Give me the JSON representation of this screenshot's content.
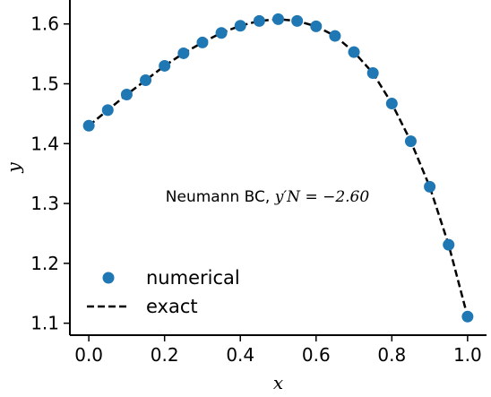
{
  "chart_data": {
    "type": "scatter",
    "xlabel": "x",
    "ylabel": "y",
    "xlim": [
      -0.05,
      1.05
    ],
    "ylim": [
      1.08,
      1.64
    ],
    "x_ticks": [
      0.0,
      0.2,
      0.4,
      0.6,
      0.8,
      1.0
    ],
    "x_tick_labels": [
      "0.0",
      "0.2",
      "0.4",
      "0.6",
      "0.8",
      "1.0"
    ],
    "y_ticks": [
      1.1,
      1.2,
      1.3,
      1.4,
      1.5,
      1.6
    ],
    "y_tick_labels": [
      "1.1",
      "1.2",
      "1.3",
      "1.4",
      "1.5",
      "1.6"
    ],
    "grid": false,
    "legend_position": "lower-left",
    "annotation": {
      "text": "Neumann BC, ",
      "math_text": "y′N = −2.60",
      "x": 0.5,
      "y": 1.3
    },
    "series": [
      {
        "name": "numerical",
        "style": "markers",
        "color": "#1f77b4",
        "x": [
          0.0,
          0.05,
          0.1,
          0.15,
          0.2,
          0.25,
          0.3,
          0.35,
          0.4,
          0.45,
          0.5,
          0.55,
          0.6,
          0.65,
          0.7,
          0.75,
          0.8,
          0.85,
          0.9,
          0.95,
          1.0
        ],
        "y": [
          1.43,
          1.456,
          1.482,
          1.506,
          1.53,
          1.551,
          1.569,
          1.585,
          1.597,
          1.605,
          1.608,
          1.605,
          1.596,
          1.58,
          1.553,
          1.518,
          1.467,
          1.404,
          1.328,
          1.231,
          1.111
        ]
      },
      {
        "name": "exact",
        "style": "dashed-line",
        "color": "#000000",
        "x": [
          0.0,
          0.05,
          0.1,
          0.15,
          0.2,
          0.25,
          0.3,
          0.35,
          0.4,
          0.45,
          0.5,
          0.55,
          0.6,
          0.65,
          0.7,
          0.75,
          0.8,
          0.85,
          0.9,
          0.95,
          1.0
        ],
        "y": [
          1.43,
          1.456,
          1.482,
          1.506,
          1.53,
          1.551,
          1.569,
          1.585,
          1.597,
          1.605,
          1.608,
          1.605,
          1.596,
          1.58,
          1.553,
          1.518,
          1.467,
          1.404,
          1.328,
          1.231,
          1.111
        ]
      }
    ]
  }
}
